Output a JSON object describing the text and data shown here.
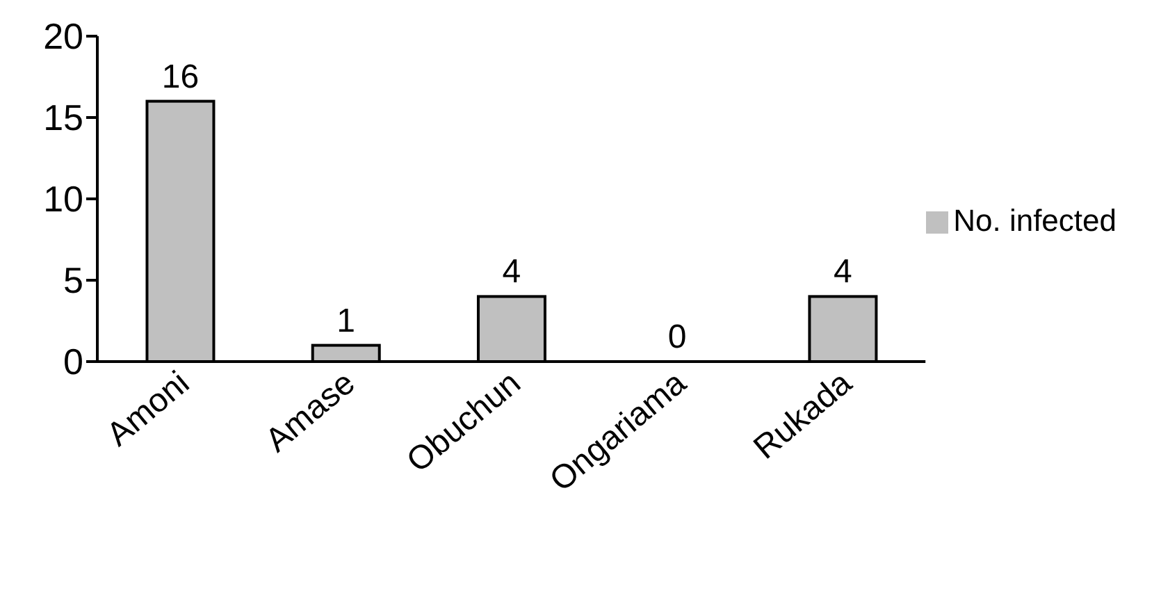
{
  "chart_data": {
    "type": "bar",
    "categories": [
      "Amoni",
      "Amase",
      "Obuchun",
      "Ongariama",
      "Rukada"
    ],
    "series": [
      {
        "name": "No. infected",
        "color": "#c0c0c0",
        "values": [
          16,
          1,
          4,
          0,
          4
        ]
      }
    ],
    "ylim": [
      0,
      20
    ],
    "yticks": [
      0,
      5,
      10,
      15,
      20
    ],
    "grid": false,
    "legend": "right",
    "data_labels": true
  }
}
